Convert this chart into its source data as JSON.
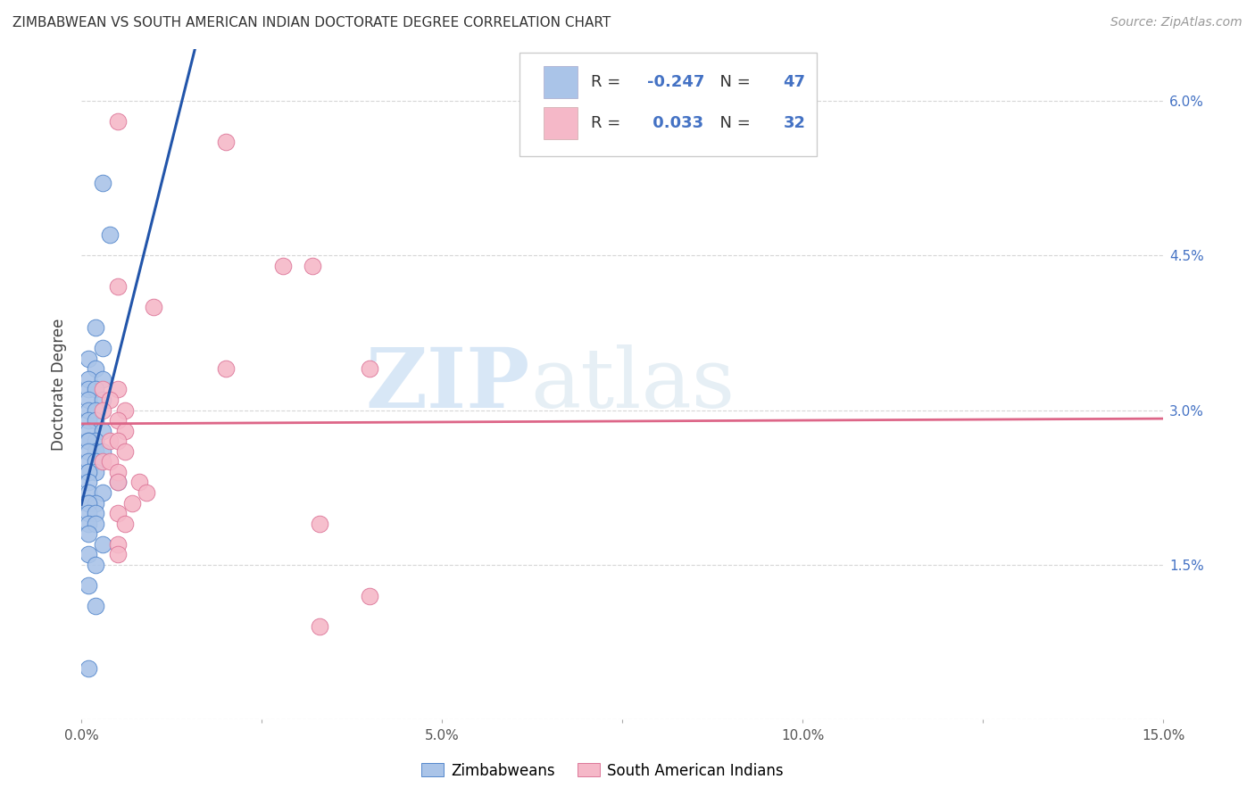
{
  "title": "ZIMBABWEAN VS SOUTH AMERICAN INDIAN DOCTORATE DEGREE CORRELATION CHART",
  "source": "Source: ZipAtlas.com",
  "ylabel_label": "Doctorate Degree",
  "xlim": [
    0.0,
    0.15
  ],
  "ylim": [
    0.0,
    0.065
  ],
  "xticks": [
    0.0,
    0.025,
    0.05,
    0.075,
    0.1,
    0.125,
    0.15
  ],
  "xtick_labels": [
    "0.0%",
    "",
    "5.0%",
    "",
    "10.0%",
    "",
    "15.0%"
  ],
  "yticks": [
    0.0,
    0.015,
    0.03,
    0.045,
    0.06
  ],
  "ytick_labels": [
    "",
    "1.5%",
    "3.0%",
    "4.5%",
    "6.0%"
  ],
  "r_blue": -0.247,
  "n_blue": 47,
  "r_pink": 0.033,
  "n_pink": 32,
  "blue_color": "#aac4e8",
  "pink_color": "#f5b8c8",
  "blue_edge_color": "#5588cc",
  "pink_edge_color": "#dd7799",
  "blue_line_color": "#2255aa",
  "pink_line_color": "#dd6688",
  "blue_scatter": [
    [
      0.003,
      0.052
    ],
    [
      0.004,
      0.047
    ],
    [
      0.002,
      0.038
    ],
    [
      0.003,
      0.036
    ],
    [
      0.001,
      0.035
    ],
    [
      0.002,
      0.034
    ],
    [
      0.001,
      0.033
    ],
    [
      0.003,
      0.033
    ],
    [
      0.001,
      0.032
    ],
    [
      0.002,
      0.032
    ],
    [
      0.001,
      0.031
    ],
    [
      0.003,
      0.031
    ],
    [
      0.001,
      0.03
    ],
    [
      0.002,
      0.03
    ],
    [
      0.001,
      0.029
    ],
    [
      0.002,
      0.029
    ],
    [
      0.001,
      0.028
    ],
    [
      0.003,
      0.028
    ],
    [
      0.001,
      0.027
    ],
    [
      0.002,
      0.027
    ],
    [
      0.001,
      0.027
    ],
    [
      0.002,
      0.026
    ],
    [
      0.001,
      0.026
    ],
    [
      0.003,
      0.026
    ],
    [
      0.001,
      0.025
    ],
    [
      0.002,
      0.025
    ],
    [
      0.001,
      0.024
    ],
    [
      0.002,
      0.024
    ],
    [
      0.001,
      0.024
    ],
    [
      0.001,
      0.023
    ],
    [
      0.005,
      0.023
    ],
    [
      0.001,
      0.022
    ],
    [
      0.003,
      0.022
    ],
    [
      0.001,
      0.021
    ],
    [
      0.002,
      0.021
    ],
    [
      0.001,
      0.021
    ],
    [
      0.001,
      0.02
    ],
    [
      0.002,
      0.02
    ],
    [
      0.001,
      0.019
    ],
    [
      0.002,
      0.019
    ],
    [
      0.001,
      0.018
    ],
    [
      0.003,
      0.017
    ],
    [
      0.001,
      0.016
    ],
    [
      0.002,
      0.015
    ],
    [
      0.001,
      0.013
    ],
    [
      0.002,
      0.011
    ],
    [
      0.001,
      0.005
    ]
  ],
  "pink_scatter": [
    [
      0.005,
      0.058
    ],
    [
      0.02,
      0.056
    ],
    [
      0.005,
      0.042
    ],
    [
      0.01,
      0.04
    ],
    [
      0.032,
      0.044
    ],
    [
      0.028,
      0.044
    ],
    [
      0.02,
      0.034
    ],
    [
      0.04,
      0.034
    ],
    [
      0.003,
      0.032
    ],
    [
      0.005,
      0.032
    ],
    [
      0.004,
      0.031
    ],
    [
      0.003,
      0.03
    ],
    [
      0.006,
      0.03
    ],
    [
      0.005,
      0.029
    ],
    [
      0.006,
      0.028
    ],
    [
      0.004,
      0.027
    ],
    [
      0.005,
      0.027
    ],
    [
      0.006,
      0.026
    ],
    [
      0.003,
      0.025
    ],
    [
      0.004,
      0.025
    ],
    [
      0.005,
      0.024
    ],
    [
      0.005,
      0.023
    ],
    [
      0.008,
      0.023
    ],
    [
      0.009,
      0.022
    ],
    [
      0.007,
      0.021
    ],
    [
      0.005,
      0.02
    ],
    [
      0.006,
      0.019
    ],
    [
      0.033,
      0.019
    ],
    [
      0.005,
      0.017
    ],
    [
      0.005,
      0.016
    ],
    [
      0.04,
      0.012
    ],
    [
      0.033,
      0.009
    ]
  ],
  "watermark_zip": "ZIP",
  "watermark_atlas": "atlas",
  "figsize": [
    14.06,
    8.92
  ],
  "dpi": 100
}
